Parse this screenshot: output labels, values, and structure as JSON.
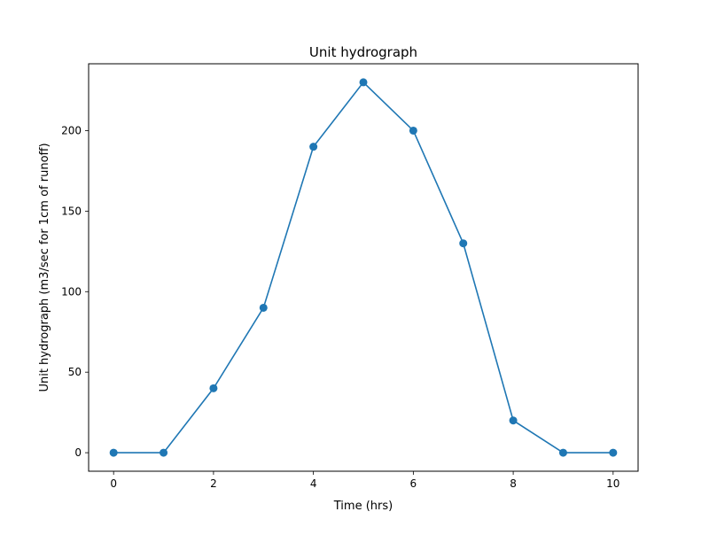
{
  "chart_data": {
    "type": "line",
    "title": "Unit hydrograph",
    "xlabel": "Time (hrs)",
    "ylabel": "Unit hydrograph (m3/sec for 1cm of runoff)",
    "x": [
      0,
      1,
      2,
      3,
      4,
      5,
      6,
      7,
      8,
      9,
      10
    ],
    "series": [
      {
        "values": [
          0,
          0,
          40,
          90,
          190,
          230,
          200,
          130,
          20,
          0,
          0
        ],
        "color": "#1f77b4",
        "marker": "circle"
      }
    ],
    "xlim": [
      -0.5,
      10.5
    ],
    "ylim": [
      -11.5,
      241.5
    ],
    "xticks": [
      0,
      2,
      4,
      6,
      8,
      10
    ],
    "yticks": [
      0,
      50,
      100,
      150,
      200
    ],
    "xtick_labels": [
      "0",
      "2",
      "4",
      "6",
      "8",
      "10"
    ],
    "ytick_labels": [
      "0",
      "50",
      "100",
      "150",
      "200"
    ],
    "grid": false,
    "legend": "none"
  }
}
